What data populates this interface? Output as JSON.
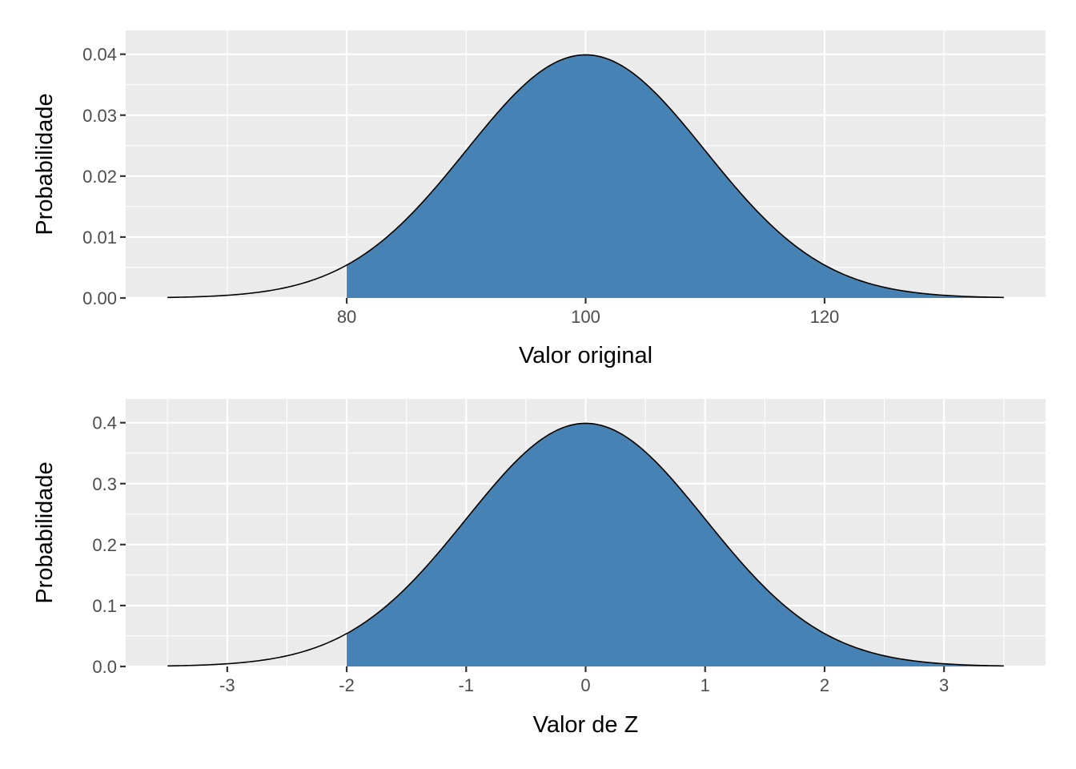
{
  "chart_data": [
    {
      "type": "area",
      "xlabel": "Valor original",
      "ylabel": "Probabilidade",
      "xlim": [
        61.5,
        138.5
      ],
      "ylim": [
        0,
        0.0439
      ],
      "x_ticks": [
        80,
        100,
        120
      ],
      "x_tick_labels": [
        "80",
        "100",
        "120"
      ],
      "y_ticks": [
        0,
        0.01,
        0.02,
        0.03,
        0.04
      ],
      "y_tick_labels": [
        "0.00",
        "0.01",
        "0.02",
        "0.03",
        "0.04"
      ],
      "grid": true,
      "legend": "none",
      "series": [
        {
          "distribution": "normal",
          "mean": 100,
          "sd": 10,
          "x_range": [
            65,
            135
          ],
          "shaded_range": [
            80,
            135
          ]
        }
      ],
      "colors": {
        "fill": "#4682b4",
        "line": "#000000",
        "panel": "#ebebeb"
      }
    },
    {
      "type": "area",
      "xlabel": "Valor de Z",
      "ylabel": "Probabilidade",
      "xlim": [
        -3.85,
        3.85
      ],
      "ylim": [
        0,
        0.439
      ],
      "x_ticks": [
        -3,
        -2,
        -1,
        0,
        1,
        2,
        3
      ],
      "x_tick_labels": [
        "-3",
        "-2",
        "-1",
        "0",
        "1",
        "2",
        "3"
      ],
      "y_ticks": [
        0,
        0.1,
        0.2,
        0.3,
        0.4
      ],
      "y_tick_labels": [
        "0.0",
        "0.1",
        "0.2",
        "0.3",
        "0.4"
      ],
      "grid": true,
      "legend": "none",
      "series": [
        {
          "distribution": "normal",
          "mean": 0,
          "sd": 1,
          "x_range": [
            -3.5,
            3.5
          ],
          "shaded_range": [
            -2,
            3.5
          ]
        }
      ],
      "colors": {
        "fill": "#4682b4",
        "line": "#000000",
        "panel": "#ebebeb"
      }
    }
  ]
}
